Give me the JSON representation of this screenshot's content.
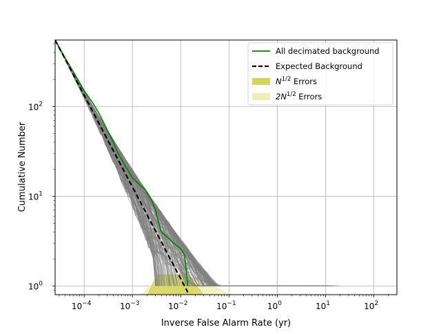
{
  "chart_data": {
    "type": "line",
    "title": "",
    "xlabel": "Inverse False Alarm Rate (yr)",
    "ylabel": "Cumulative Number",
    "x_scale": "log",
    "y_scale": "log",
    "xlim": [
      2.5e-05,
      300
    ],
    "ylim": [
      0.8,
      550
    ],
    "grid": true,
    "legend_position": "top-right",
    "x_ticks": [
      {
        "value": 0.0001,
        "base": "10",
        "exp": "−4"
      },
      {
        "value": 0.001,
        "base": "10",
        "exp": "−3"
      },
      {
        "value": 0.01,
        "base": "10",
        "exp": "−2"
      },
      {
        "value": 0.1,
        "base": "10",
        "exp": "−1"
      },
      {
        "value": 1,
        "base": "10",
        "exp": "0"
      },
      {
        "value": 10,
        "base": "10",
        "exp": "1"
      },
      {
        "value": 100,
        "base": "10",
        "exp": "2"
      }
    ],
    "y_ticks": [
      {
        "value": 1,
        "base": "10",
        "exp": "0"
      },
      {
        "value": 10,
        "base": "10",
        "exp": "1"
      },
      {
        "value": 100,
        "base": "10",
        "exp": "2"
      }
    ],
    "legend": [
      {
        "label": "All decimated background",
        "kind": "line",
        "color": "#008000"
      },
      {
        "label": "Expected Background",
        "kind": "dashed",
        "color": "#000000"
      },
      {
        "label_main": "N",
        "label_sup": "1/2",
        "label_tail": " Errors",
        "kind": "patch",
        "color": "#d4d45a"
      },
      {
        "label_main": "2N",
        "label_sup": "1/2",
        "label_tail": " Errors",
        "kind": "patch",
        "color": "#eeeebb"
      }
    ],
    "series": [
      {
        "name": "All decimated background",
        "color": "#008000",
        "points": [
          [
            2.5e-05,
            550
          ],
          [
            4e-05,
            350
          ],
          [
            7e-05,
            210
          ],
          [
            0.0001,
            150
          ],
          [
            0.00015,
            110
          ],
          [
            0.0002,
            85
          ],
          [
            0.0003,
            55
          ],
          [
            0.0004,
            40
          ],
          [
            0.0005,
            30
          ],
          [
            0.0007,
            22
          ],
          [
            0.001,
            16
          ],
          [
            0.0015,
            13
          ],
          [
            0.0018,
            12
          ],
          [
            0.002,
            11
          ],
          [
            0.0025,
            9
          ],
          [
            0.003,
            7
          ],
          [
            0.0035,
            5
          ],
          [
            0.0038,
            4.3
          ],
          [
            0.004,
            4
          ],
          [
            0.005,
            3.6
          ],
          [
            0.007,
            3
          ],
          [
            0.01,
            2.6
          ],
          [
            0.012,
            2.2
          ],
          [
            0.014,
            1
          ]
        ]
      },
      {
        "name": "Expected Background",
        "color": "#000000",
        "dashed": true,
        "points": [
          [
            2.5e-05,
            550
          ],
          [
            0.014,
            0.85
          ]
        ]
      }
    ],
    "error_band_N": {
      "color": "#d4d45a",
      "x_range": [
        0.002,
        0.03
      ],
      "y_floor": 0.8,
      "y_top": 1.35
    },
    "error_band_2N": {
      "color": "#eeeebb",
      "x_range": [
        0.0015,
        0.1
      ],
      "y_floor": 0.8,
      "y_top": 1.2
    },
    "background_trials": {
      "color": "#808080",
      "count": 160,
      "max_ifar_range": [
        0.003,
        20
      ]
    }
  }
}
